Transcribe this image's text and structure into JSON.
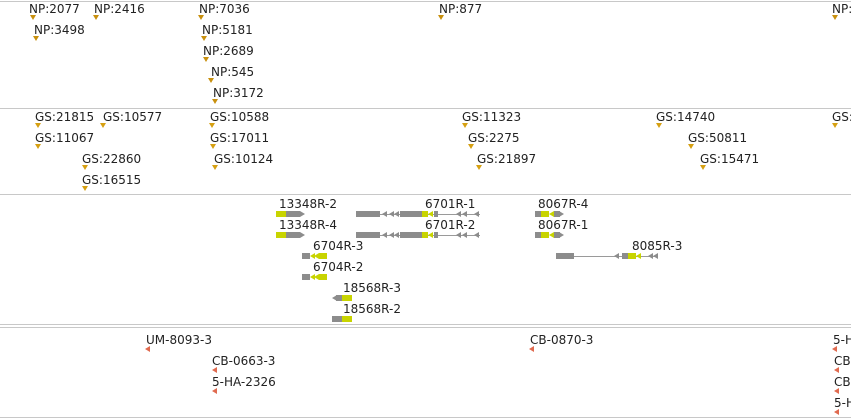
{
  "tracks": {
    "np": {
      "features": [
        "NP:2077",
        "NP:2416",
        "NP:7036",
        "NP:877",
        "NP:3498",
        "NP:5181",
        "NP:2689",
        "NP:545",
        "NP:3172",
        "NP:"
      ],
      "color": "#c8900e"
    },
    "gs": {
      "features": [
        "GS:21815",
        "GS:10577",
        "GS:10588",
        "GS:11323",
        "GS:14740",
        "GS:",
        "GS:11067",
        "GS:17011",
        "GS:2275",
        "GS:50811",
        "GS:22860",
        "GS:10124",
        "GS:21897",
        "GS:15471",
        "GS:16515"
      ],
      "color": "#d6a012"
    },
    "transcripts": {
      "features": [
        "13348R-2",
        "6701R-1",
        "8067R-4",
        "13348R-4",
        "6701R-2",
        "8067R-1",
        "6704R-3",
        "8085R-3",
        "6704R-2",
        "18568R-3",
        "18568R-2"
      ],
      "colors": {
        "intron": "#8c8c8c",
        "utr": "#c8d400"
      }
    },
    "reagents": {
      "features": [
        "UM-8093-3",
        "CB-0870-3",
        "5-H",
        "CB-0663-3",
        "CB-",
        "5-HA-2326",
        "CB-",
        "5-H"
      ],
      "color": "#e06a4f"
    }
  }
}
